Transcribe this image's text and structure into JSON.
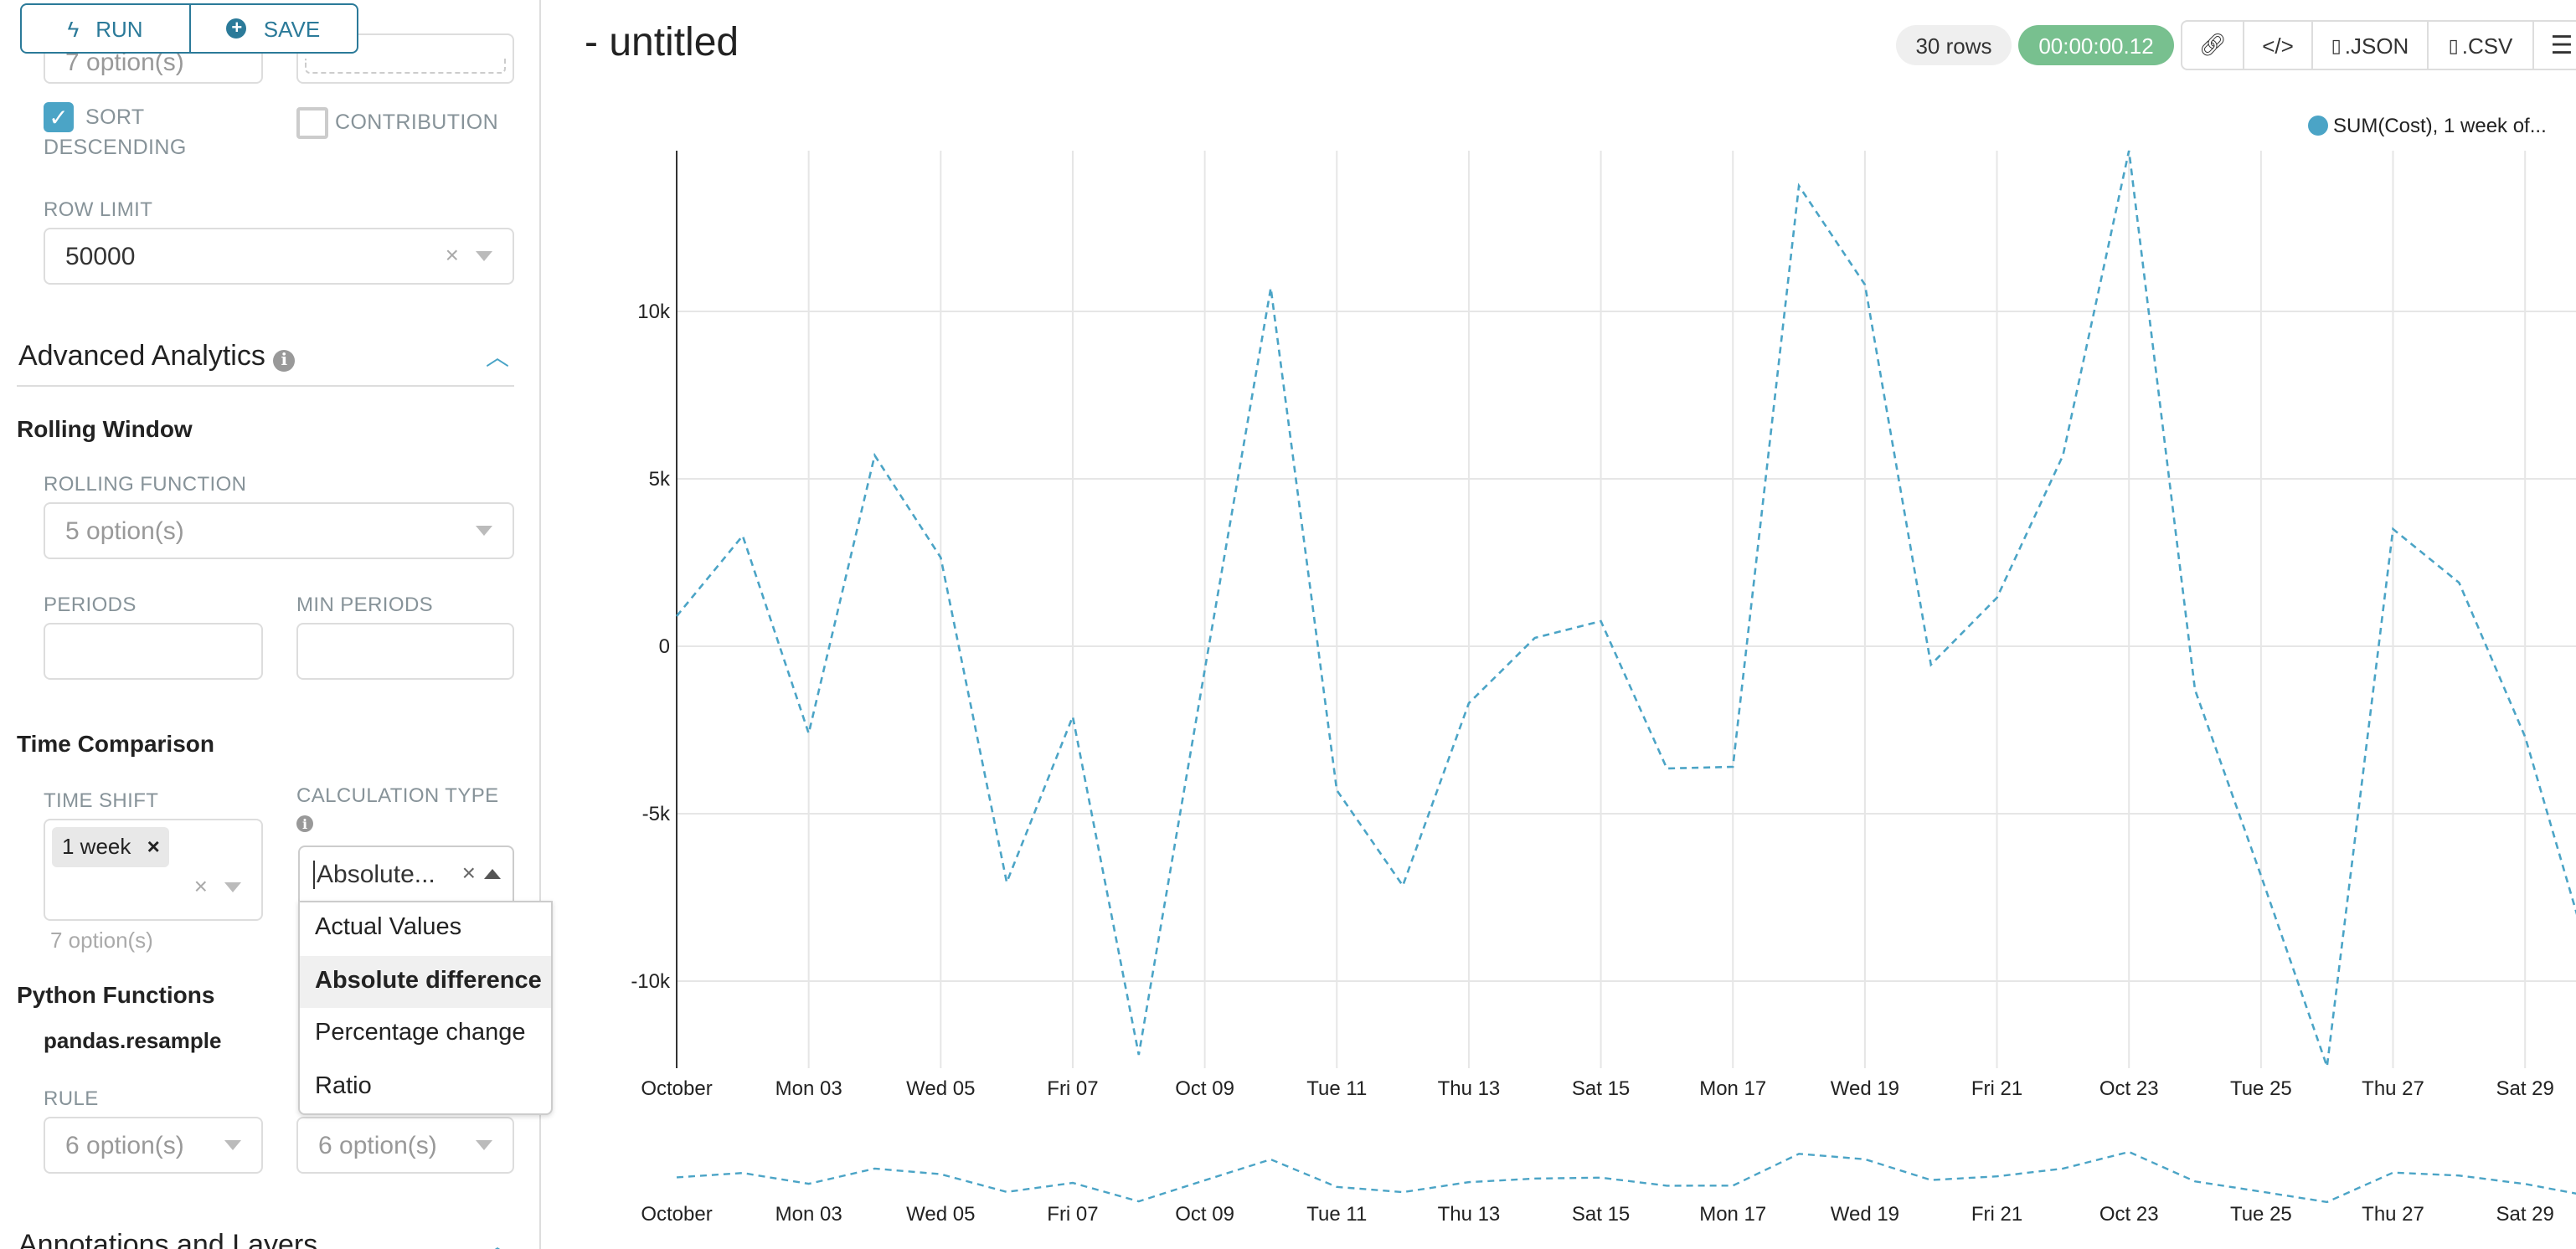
{
  "toolbar": {
    "run_label": "RUN",
    "save_label": "SAVE",
    "run_icon": "bolt-icon",
    "save_icon": "plus-circle-icon"
  },
  "sidebar": {
    "top_field_left": "7 option(s)",
    "sort_descending": {
      "label_1": "SORT",
      "label_2": "DESCENDING",
      "checked": true
    },
    "contribution": {
      "label": "CONTRIBUTION",
      "checked": false
    },
    "row_limit": {
      "label": "ROW LIMIT",
      "value": "50000"
    },
    "advanced_analytics": {
      "title": "Advanced Analytics",
      "expanded": true
    },
    "rolling_window": {
      "title": "Rolling Window",
      "function_label": "ROLLING FUNCTION",
      "function_placeholder": "5 option(s)",
      "periods_label": "PERIODS",
      "min_periods_label": "MIN PERIODS"
    },
    "time_comparison": {
      "title": "Time Comparison",
      "time_shift_label": "TIME SHIFT",
      "time_shift_tag": "1 week",
      "time_shift_hint": "7 option(s)",
      "calc_type_label": "CALCULATION TYPE",
      "calc_type_value": "Absolute...",
      "calc_options": [
        "Actual Values",
        "Absolute difference",
        "Percentage change",
        "Ratio"
      ],
      "calc_active": "Absolute difference"
    },
    "python_functions": {
      "title": "Python Functions",
      "subtitle": "pandas.resample",
      "rule_label": "RULE",
      "rule_placeholder": "6 option(s)",
      "method_placeholder": "6 option(s)"
    },
    "annotations": {
      "title": "Annotations and Layers",
      "expanded": true
    }
  },
  "header": {
    "title": "- untitled",
    "rows_badge": "30 rows",
    "timer_badge": "00:00:00.12",
    "timer_color": "#78c08f",
    "json_label": ".JSON",
    "csv_label": ".CSV"
  },
  "chart_data": {
    "type": "line",
    "line_style": "dashed",
    "color": "#4ba4c6",
    "legend": [
      "SUM(Cost), 1 week of..."
    ],
    "legend_placement": "top-right",
    "grid": true,
    "x": [
      "2022-10-01",
      "2022-10-02",
      "2022-10-03",
      "2022-10-04",
      "2022-10-05",
      "2022-10-06",
      "2022-10-07",
      "2022-10-08",
      "2022-10-09",
      "2022-10-10",
      "2022-10-11",
      "2022-10-12",
      "2022-10-13",
      "2022-10-14",
      "2022-10-15",
      "2022-10-16",
      "2022-10-17",
      "2022-10-18",
      "2022-10-19",
      "2022-10-20",
      "2022-10-21",
      "2022-10-22",
      "2022-10-23",
      "2022-10-24",
      "2022-10-25",
      "2022-10-26",
      "2022-10-27",
      "2022-10-28",
      "2022-10-29",
      "2022-10-30"
    ],
    "series": [
      {
        "name": "SUM(Cost), 1 week of...",
        "values": [
          900,
          3300,
          -2600,
          5700,
          2650,
          -7050,
          -2100,
          -12200,
          -700,
          10700,
          -4300,
          -7150,
          -1700,
          250,
          750,
          -3650,
          -3600,
          13750,
          10800,
          -550,
          1450,
          5700,
          14800,
          -1300,
          -6850,
          -12550,
          3500,
          1900,
          -2700,
          -9450
        ]
      }
    ],
    "x_tick_labels": [
      "October",
      "Mon 03",
      "Wed 05",
      "Fri 07",
      "Oct 09",
      "Tue 11",
      "Thu 13",
      "Sat 15",
      "Mon 17",
      "Wed 19",
      "Fri 21",
      "Oct 23",
      "Tue 25",
      "Thu 27",
      "Sat 29"
    ],
    "y_tick_labels": [
      "-10k",
      "-5k",
      "0",
      "5k",
      "10k"
    ],
    "y_ticks": [
      -10000,
      -5000,
      0,
      5000,
      10000
    ],
    "ylim": [
      -12600,
      14800
    ],
    "brush_minimap": true
  }
}
